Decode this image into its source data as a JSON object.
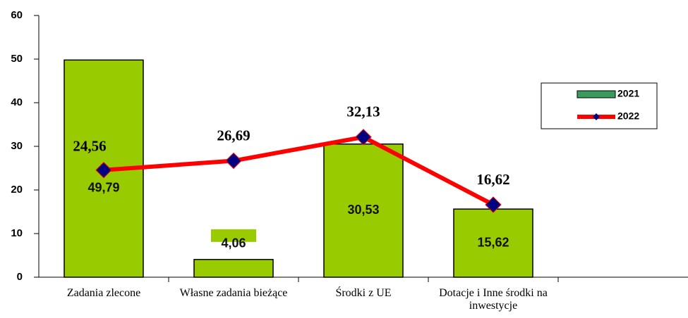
{
  "chart_data": {
    "type": "bar",
    "categories": [
      "Zadania zlecone",
      "Własne zadania bieżące",
      "Środki z UE",
      "Dotacje i Inne środki na inwestycje",
      null
    ],
    "series": [
      {
        "name": "2021",
        "type": "bar",
        "color": "#99cc00",
        "values": [
          49.79,
          4.06,
          30.53,
          15.62,
          null
        ],
        "value_labels": [
          "49,79",
          "4,06",
          "30,53",
          "15,62",
          null
        ]
      },
      {
        "name": "2022",
        "type": "line",
        "color": "#ff0000",
        "marker_color": "#000080",
        "values": [
          24.56,
          26.69,
          32.13,
          16.62,
          null
        ],
        "value_labels": [
          "24,56",
          "26,69",
          "32,13",
          "16,62",
          null
        ]
      }
    ],
    "ylim": [
      0,
      60
    ],
    "yticks": [
      0,
      10,
      20,
      30,
      40,
      50,
      60
    ],
    "grid": false,
    "legend": "right"
  }
}
